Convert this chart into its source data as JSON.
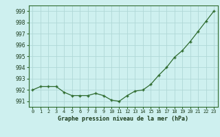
{
  "x": [
    0,
    1,
    2,
    3,
    4,
    5,
    6,
    7,
    8,
    9,
    10,
    11,
    12,
    13,
    14,
    15,
    16,
    17,
    18,
    19,
    20,
    21,
    22,
    23
  ],
  "y": [
    992.0,
    992.3,
    992.3,
    992.3,
    991.8,
    991.5,
    991.5,
    991.5,
    991.7,
    991.5,
    991.1,
    991.0,
    991.5,
    991.9,
    992.0,
    992.5,
    993.3,
    994.0,
    994.9,
    995.5,
    996.3,
    997.2,
    998.1,
    999.0
  ],
  "line_color": "#2d6a2d",
  "marker_color": "#2d6a2d",
  "bg_color": "#cef0ef",
  "grid_color": "#b0d8d6",
  "ylim": [
    990.5,
    999.5
  ],
  "xlim": [
    -0.5,
    23.5
  ],
  "yticks": [
    991,
    992,
    993,
    994,
    995,
    996,
    997,
    998,
    999
  ],
  "xtick_labels": [
    "0",
    "1",
    "2",
    "3",
    "4",
    "5",
    "6",
    "7",
    "8",
    "9",
    "10",
    "11",
    "12",
    "13",
    "14",
    "15",
    "16",
    "17",
    "18",
    "19",
    "20",
    "21",
    "22",
    "23"
  ],
  "xlabel": "Graphe pression niveau de la mer (hPa)"
}
